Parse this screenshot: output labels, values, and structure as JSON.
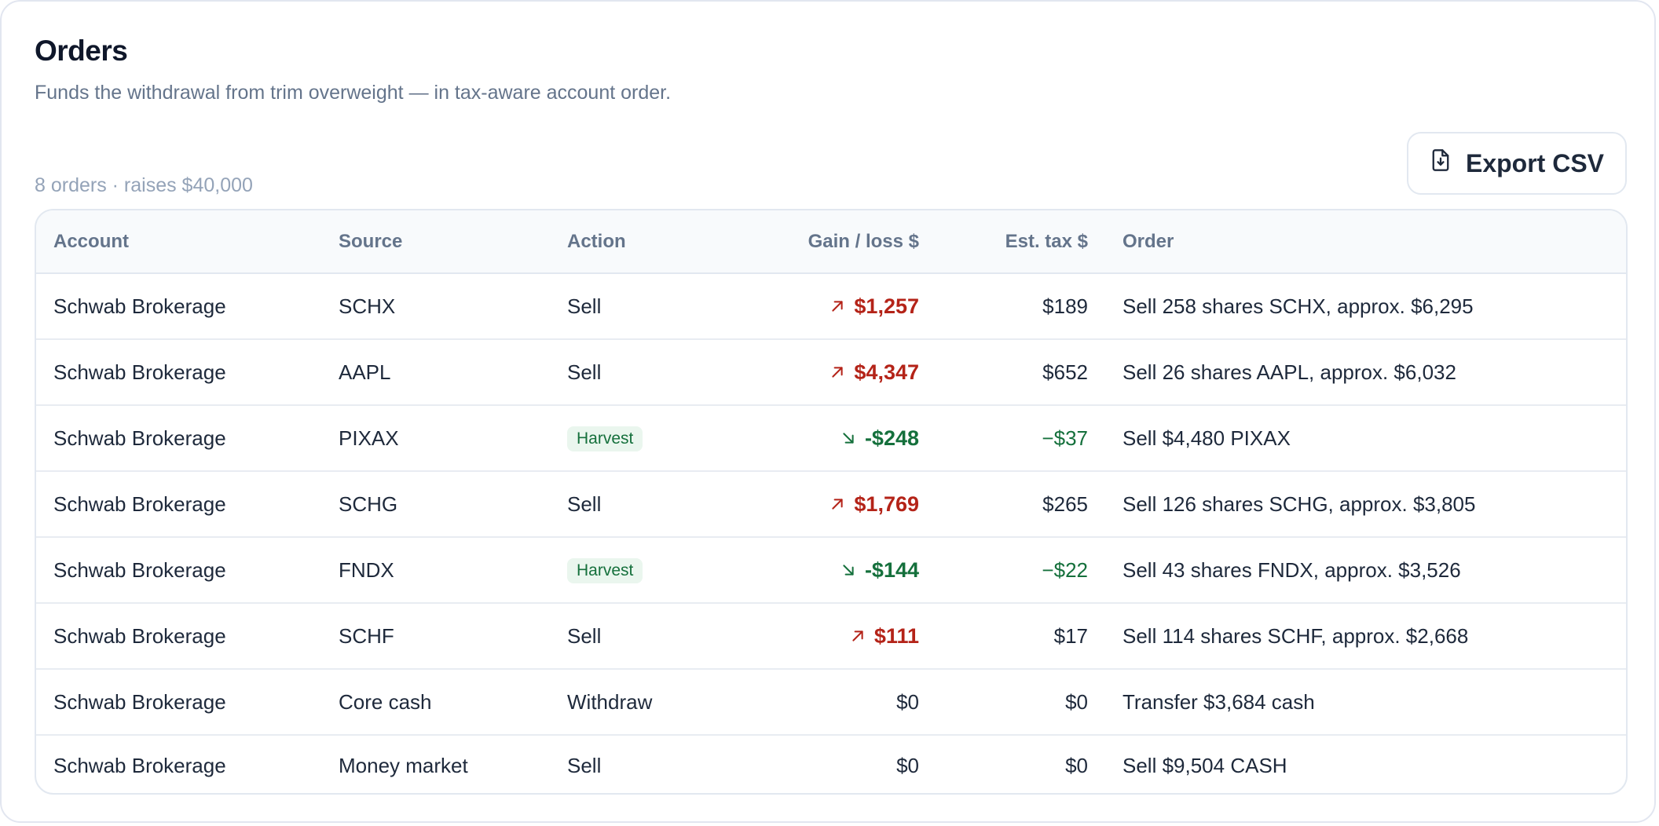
{
  "header": {
    "title": "Orders",
    "subtitle": "Funds the withdrawal from trim overweight — in tax-aware account order.",
    "summary": "8 orders · raises $40,000"
  },
  "toolbar": {
    "export_label": "Export CSV",
    "export_icon": "file-download-icon"
  },
  "colors": {
    "gain": "#b42318",
    "loss": "#15703c",
    "harvest_bg": "#eaf6ee"
  },
  "table": {
    "columns": [
      "Account",
      "Source",
      "Action",
      "Gain / loss $",
      "Est. tax $",
      "Order"
    ],
    "rows": [
      {
        "account": "Schwab Brokerage",
        "source": "SCHX",
        "action": "Sell",
        "gain": "$1,257",
        "tax": "$189",
        "order": "Sell 258 shares SCHX, approx. $6,295"
      },
      {
        "account": "Schwab Brokerage",
        "source": "AAPL",
        "action": "Sell",
        "gain": "$4,347",
        "tax": "$652",
        "order": "Sell 26 shares AAPL, approx. $6,032"
      },
      {
        "account": "Schwab Brokerage",
        "source": "PIXAX",
        "action": "Harvest",
        "gain": "-$248",
        "tax": "−$37",
        "order": "Sell $4,480 PIXAX"
      },
      {
        "account": "Schwab Brokerage",
        "source": "SCHG",
        "action": "Sell",
        "gain": "$1,769",
        "tax": "$265",
        "order": "Sell 126 shares SCHG, approx. $3,805"
      },
      {
        "account": "Schwab Brokerage",
        "source": "FNDX",
        "action": "Harvest",
        "gain": "-$144",
        "tax": "−$22",
        "order": "Sell 43 shares FNDX, approx. $3,526"
      },
      {
        "account": "Schwab Brokerage",
        "source": "SCHF",
        "action": "Sell",
        "gain": "$111",
        "tax": "$17",
        "order": "Sell 114 shares SCHF, approx. $2,668"
      },
      {
        "account": "Schwab Brokerage",
        "source": "Core cash",
        "action": "Withdraw",
        "gain": "$0",
        "tax": "$0",
        "order": "Transfer $3,684 cash"
      },
      {
        "account": "Schwab Brokerage",
        "source": "Money market",
        "action": "Sell",
        "gain": "$0",
        "tax": "$0",
        "order": "Sell $9,504 CASH"
      }
    ]
  }
}
